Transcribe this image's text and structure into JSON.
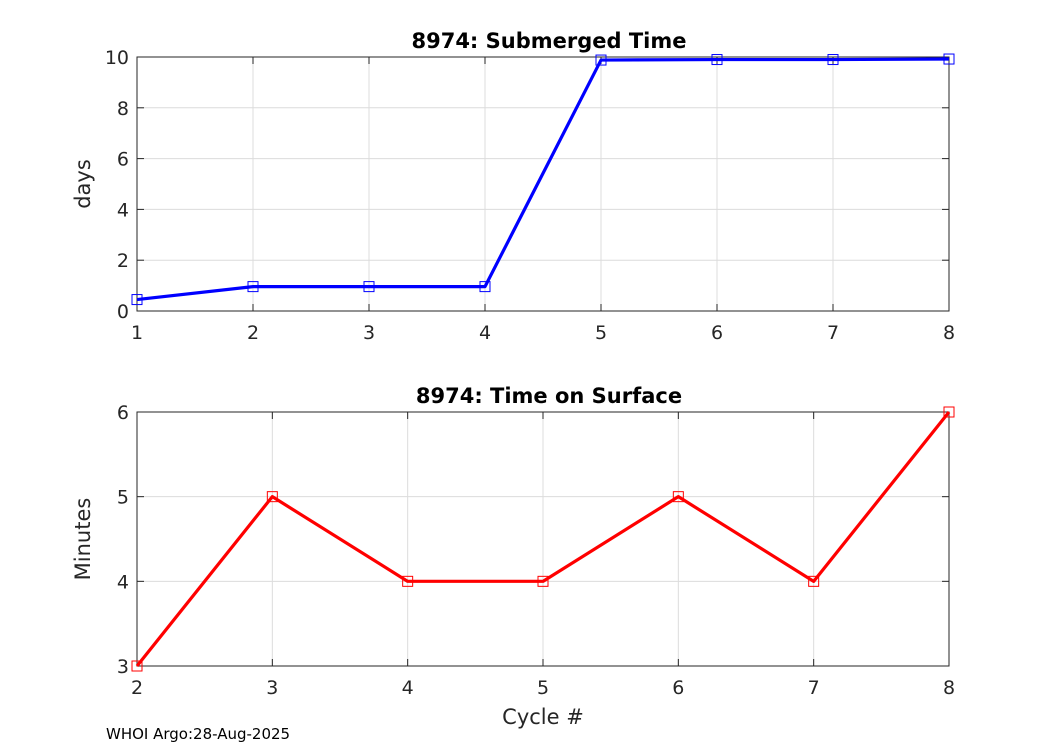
{
  "footer": "WHOI Argo:28-Aug-2025",
  "chart_data": [
    {
      "type": "line",
      "title": "8974: Submerged Time",
      "xlabel": "",
      "ylabel": "days",
      "xlim": [
        1,
        8
      ],
      "ylim": [
        0,
        10
      ],
      "xticks": [
        1,
        2,
        3,
        4,
        5,
        6,
        7,
        8
      ],
      "yticks": [
        0,
        2,
        4,
        6,
        8,
        10
      ],
      "grid": true,
      "series": [
        {
          "name": "Submerged Time",
          "color": "#0000ff",
          "marker": "square",
          "x": [
            1,
            2,
            3,
            4,
            5,
            6,
            7,
            8
          ],
          "values": [
            0.45,
            0.96,
            0.96,
            0.96,
            9.88,
            9.9,
            9.9,
            9.92
          ]
        }
      ]
    },
    {
      "type": "line",
      "title": "8974: Time on Surface",
      "xlabel": "Cycle #",
      "ylabel": "Minutes",
      "xlim": [
        2,
        8
      ],
      "ylim": [
        3,
        6
      ],
      "xticks": [
        2,
        3,
        4,
        5,
        6,
        7,
        8
      ],
      "yticks": [
        3,
        4,
        5,
        6
      ],
      "grid": true,
      "series": [
        {
          "name": "Time on Surface",
          "color": "#ff0000",
          "marker": "square",
          "x": [
            2,
            3,
            4,
            5,
            6,
            7,
            8
          ],
          "values": [
            3,
            5,
            4,
            4,
            5,
            4,
            6
          ]
        }
      ]
    }
  ]
}
